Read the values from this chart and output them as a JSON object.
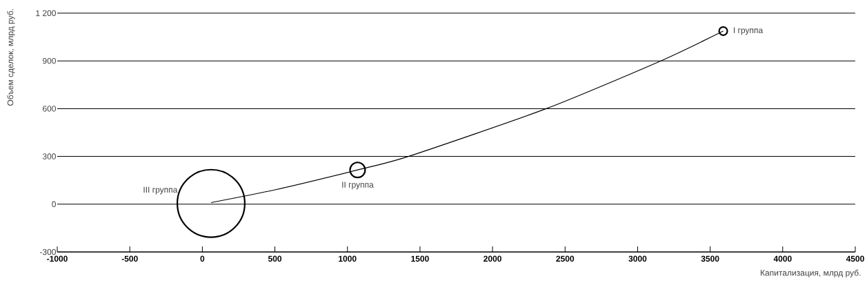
{
  "chart_data": {
    "type": "bubble",
    "xlabel": "Капитализация, млрд руб.",
    "ylabel": "Объем сделок, млрд руб.",
    "xlim": [
      -1000,
      4500
    ],
    "ylim": [
      -300,
      1200
    ],
    "xticks": [
      -1000,
      -500,
      0,
      500,
      1000,
      1500,
      2000,
      2500,
      3000,
      3500,
      4000,
      4500
    ],
    "yticks": [
      -300,
      0,
      300,
      600,
      900,
      {
        "value": 1200,
        "label": "1 200"
      }
    ],
    "grid": "y",
    "series": [
      {
        "type": "line",
        "color": "#000000",
        "x": [
          60,
          500,
          1070,
          1420,
          2370,
          3160,
          3590
        ],
        "values": [
          10,
          90,
          215,
          300,
          600,
          900,
          1087
        ]
      },
      {
        "color": "#000000",
        "x": [
          60,
          1070,
          3590
        ],
        "values": [
          5,
          215,
          1087
        ],
        "sizes": [
          1,
          0.058,
          0.02
        ]
      }
    ],
    "annotations": [
      "III группа",
      "II группа",
      "I группа"
    ]
  }
}
